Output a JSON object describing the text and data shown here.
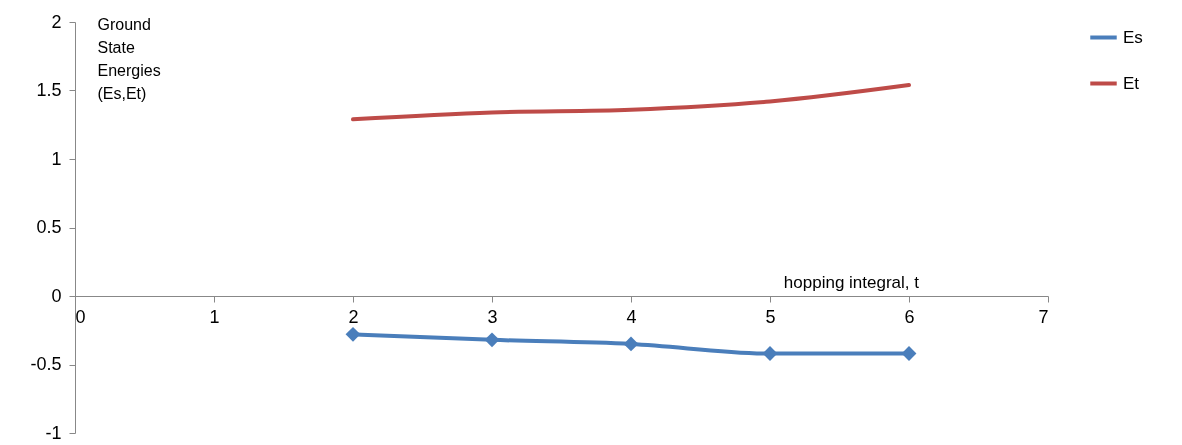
{
  "chart_data": {
    "type": "line",
    "xlabel": "hopping integral, t",
    "ylabel": "Ground State Energies (Es,Et)",
    "x": [
      2,
      3,
      4,
      5,
      6
    ],
    "series": [
      {
        "name": "Es",
        "color": "#4a7ebb",
        "values": [
          -0.28,
          -0.32,
          -0.35,
          -0.42,
          -0.42
        ],
        "marker": "diamond"
      },
      {
        "name": "Et",
        "color": "#be4b48",
        "values": [
          1.29,
          1.34,
          1.36,
          1.42,
          1.54
        ],
        "marker": "none"
      }
    ],
    "xlim": [
      0,
      7
    ],
    "xticks": [
      0,
      1,
      2,
      3,
      4,
      5,
      6,
      7
    ],
    "ylim": [
      -1,
      2
    ],
    "yticks": [
      -1,
      -0.5,
      0,
      0.5,
      1,
      1.5,
      2
    ],
    "grid": false,
    "legend": "right"
  }
}
